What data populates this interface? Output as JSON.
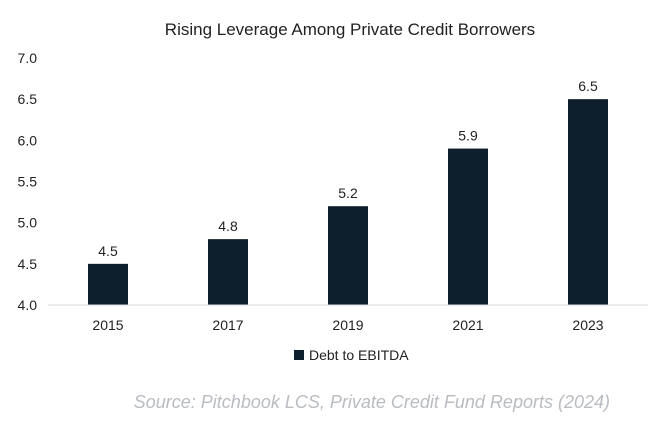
{
  "chart_data": {
    "type": "bar",
    "title": "Rising Leverage Among Private Credit Borrowers",
    "categories": [
      "2015",
      "2017",
      "2019",
      "2021",
      "2023"
    ],
    "series": [
      {
        "name": "Debt to EBITDA",
        "values": [
          4.5,
          4.8,
          5.2,
          5.9,
          6.5
        ],
        "color": "#0d1f2d"
      }
    ],
    "data_labels": [
      "4.5",
      "4.8",
      "5.2",
      "5.9",
      "6.5"
    ],
    "ylim": [
      4.0,
      7.0
    ],
    "yticks": [
      "4.0",
      "4.5",
      "5.0",
      "5.5",
      "6.0",
      "6.5",
      "7.0"
    ],
    "grid": false,
    "legend_position": "bottom",
    "axis_color": "#d9d9d9"
  },
  "source": "Source: Pitchbook LCS, Private Credit Fund Reports (2024)"
}
